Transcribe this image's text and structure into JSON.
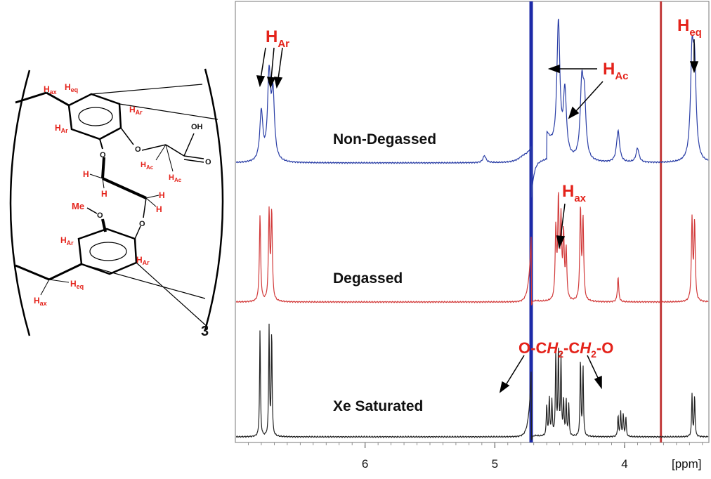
{
  "structure": {
    "atom_labels": {
      "h_ax_top": "H",
      "h_ax_top_sub": "ax",
      "h_eq_top": "H",
      "h_eq_top_sub": "eq",
      "h_ar_1": "H",
      "h_ar_1_sub": "Ar",
      "h_ar_2": "H",
      "h_ar_2_sub": "Ar",
      "oh": "OH",
      "h_ac_1": "H",
      "h_ac_1_sub": "Ac",
      "h_ac_2": "H",
      "h_ac_2_sub": "Ac",
      "o_top_left": "O",
      "o_top_right": "O",
      "o_mid_right": "O",
      "o_carbonyl": "O",
      "h_bridge_1": "H",
      "h_bridge_2": "H",
      "h_bridge_3": "H",
      "h_bridge_4": "H",
      "me": "Me",
      "h_ar_3": "H",
      "h_ar_3_sub": "Ar",
      "h_ar_4": "H",
      "h_ar_4_sub": "Ar",
      "h_eq_bot": "H",
      "h_eq_bot_sub": "eq",
      "h_ax_bot": "H",
      "h_ax_bot_sub": "ax"
    },
    "repeat_subscript": "3"
  },
  "chart_data": {
    "type": "line",
    "xlabel": "[ppm]",
    "x_reversed": true,
    "xlim": [
      7.0,
      3.35
    ],
    "x_ticks": [
      "6",
      "5",
      "4"
    ],
    "x_tick_values": [
      6,
      5,
      4
    ],
    "series": [
      {
        "name": "Non-Degassed",
        "color": "#2a3ea6"
      },
      {
        "name": "Degassed",
        "color": "#d23a3a"
      },
      {
        "name": "Xe Saturated",
        "color": "#222222"
      }
    ],
    "vertical_markers": [
      {
        "ppm": 4.72,
        "color": "#1c2aa8"
      },
      {
        "ppm": 3.72,
        "color": "#c23a3a"
      }
    ],
    "annotations": {
      "h_ar": {
        "main": "H",
        "sub": "Ar"
      },
      "h_ac": {
        "main": "H",
        "sub": "Ac"
      },
      "h_eq": {
        "main": "H",
        "sub": "eq"
      },
      "h_ax": {
        "main": "H",
        "sub": "ax"
      },
      "ethylene": {
        "p1": "O-C",
        "i1": "H",
        "s1": "2",
        "p2": "-C",
        "i2": "H",
        "s2": "2",
        "p3": "-O"
      }
    },
    "peaks": {
      "Non-Degassed": [
        {
          "ppm": 6.8,
          "height": 70
        },
        {
          "ppm": 6.74,
          "height": 120
        },
        {
          "ppm": 6.71,
          "height": 90
        },
        {
          "ppm": 5.08,
          "height": 10
        },
        {
          "ppm": 4.51,
          "height": 185
        },
        {
          "ppm": 4.46,
          "height": 90
        },
        {
          "ppm": 4.33,
          "height": 100
        },
        {
          "ppm": 4.31,
          "height": 80
        },
        {
          "ppm": 4.05,
          "height": 45
        },
        {
          "ppm": 3.9,
          "height": 20
        },
        {
          "ppm": 3.48,
          "height": 140
        },
        {
          "ppm": 3.46,
          "height": 120
        }
      ],
      "Degassed": [
        {
          "ppm": 6.81,
          "height": 122
        },
        {
          "ppm": 6.74,
          "height": 125
        },
        {
          "ppm": 6.72,
          "height": 125
        },
        {
          "ppm": 4.53,
          "height": 100
        },
        {
          "ppm": 4.51,
          "height": 140
        },
        {
          "ppm": 4.49,
          "height": 110
        },
        {
          "ppm": 4.47,
          "height": 90
        },
        {
          "ppm": 4.45,
          "height": 70
        },
        {
          "ppm": 4.34,
          "height": 130
        },
        {
          "ppm": 4.32,
          "height": 115
        },
        {
          "ppm": 4.05,
          "height": 35
        },
        {
          "ppm": 3.48,
          "height": 115
        },
        {
          "ppm": 3.46,
          "height": 110
        }
      ],
      "Xe Saturated": [
        {
          "ppm": 6.81,
          "height": 152
        },
        {
          "ppm": 6.74,
          "height": 155
        },
        {
          "ppm": 6.72,
          "height": 150
        },
        {
          "ppm": 4.6,
          "height": 45
        },
        {
          "ppm": 4.58,
          "height": 55
        },
        {
          "ppm": 4.56,
          "height": 50
        },
        {
          "ppm": 4.53,
          "height": 120
        },
        {
          "ppm": 4.51,
          "height": 125
        },
        {
          "ppm": 4.49,
          "height": 110
        },
        {
          "ppm": 4.47,
          "height": 50
        },
        {
          "ppm": 4.45,
          "height": 50
        },
        {
          "ppm": 4.43,
          "height": 45
        },
        {
          "ppm": 4.34,
          "height": 110
        },
        {
          "ppm": 4.32,
          "height": 100
        },
        {
          "ppm": 4.05,
          "height": 30
        },
        {
          "ppm": 4.03,
          "height": 35
        },
        {
          "ppm": 4.01,
          "height": 32
        },
        {
          "ppm": 3.99,
          "height": 28
        },
        {
          "ppm": 3.48,
          "height": 60
        },
        {
          "ppm": 3.46,
          "height": 58
        }
      ]
    }
  }
}
